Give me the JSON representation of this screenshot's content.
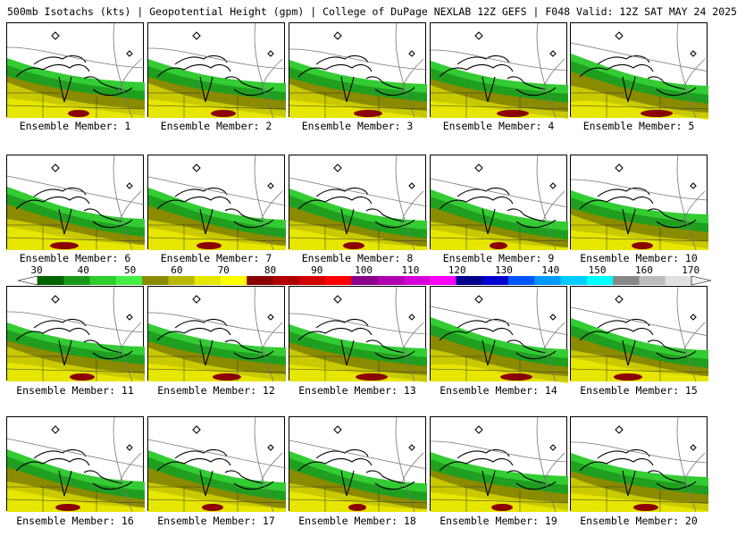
{
  "header": {
    "title": "500mb Isotachs (kts) | Geopotential Height (gpm) | College of DuPage NEXLAB   12Z GEFS | F048 Valid: 12Z SAT MAY 24 2025"
  },
  "colorbar": {
    "ticks": [
      "30",
      "40",
      "50",
      "60",
      "70",
      "80",
      "90",
      "100",
      "110",
      "120",
      "130",
      "140",
      "150",
      "160",
      "170"
    ],
    "colors": [
      "#006400",
      "#1a9a1a",
      "#2ecc2e",
      "#44ee44",
      "#8b8b00",
      "#b8b800",
      "#e6e600",
      "#ffff00",
      "#8b0000",
      "#b00000",
      "#d40000",
      "#ff0000",
      "#8b008b",
      "#b000b0",
      "#d400d4",
      "#ff00ff",
      "#00008b",
      "#0000d0",
      "#0055ff",
      "#0099ff",
      "#00ccff",
      "#00ffff",
      "#888888",
      "#bbbbbb",
      "#e0e0e0"
    ]
  },
  "panels": [
    {
      "caption": "Ensemble Member: 1"
    },
    {
      "caption": "Ensemble Member: 2"
    },
    {
      "caption": "Ensemble Member: 3"
    },
    {
      "caption": "Ensemble Member: 4"
    },
    {
      "caption": "Ensemble Member: 5"
    },
    {
      "caption": "Ensemble Member: 6"
    },
    {
      "caption": "Ensemble Member: 7"
    },
    {
      "caption": "Ensemble Member: 8"
    },
    {
      "caption": "Ensemble Member: 9"
    },
    {
      "caption": "Ensemble Member: 10"
    },
    {
      "caption": "Ensemble Member: 11"
    },
    {
      "caption": "Ensemble Member: 12"
    },
    {
      "caption": "Ensemble Member: 13"
    },
    {
      "caption": "Ensemble Member: 14"
    },
    {
      "caption": "Ensemble Member: 15"
    },
    {
      "caption": "Ensemble Member: 16"
    },
    {
      "caption": "Ensemble Member: 17"
    },
    {
      "caption": "Ensemble Member: 18"
    },
    {
      "caption": "Ensemble Member: 19"
    },
    {
      "caption": "Ensemble Member: 20"
    }
  ]
}
